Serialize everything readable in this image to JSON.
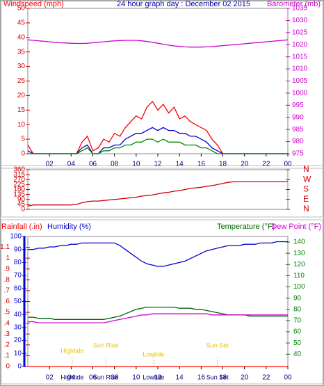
{
  "chart_data": [
    {
      "type": "line",
      "title": "24 hour graph day : December 02 2015",
      "xlim": [
        0,
        24
      ],
      "xticks": [
        {
          "value": 2,
          "label": "02"
        },
        {
          "value": 4,
          "label": "04"
        },
        {
          "value": 6,
          "label": "06"
        },
        {
          "value": 8,
          "label": "08"
        },
        10,
        12,
        14,
        16,
        18,
        20,
        22,
        {
          "value": 24,
          "label": "00"
        }
      ],
      "ylim": [
        0,
        50
      ],
      "yticks": [
        0,
        5,
        10,
        15,
        20,
        25,
        30,
        35,
        40,
        45,
        50
      ],
      "ycolor": "#cc0000",
      "y2lim": [
        975,
        1035
      ],
      "y2ticks": [
        975,
        980,
        985,
        990,
        995,
        1000,
        1005,
        1010,
        1015,
        1020,
        1025,
        1030,
        1035
      ],
      "y2color": "#cc00cc",
      "grid": false,
      "x": [
        0,
        0.5,
        1,
        1.5,
        2,
        2.5,
        3,
        3.5,
        4,
        4.5,
        5,
        5.5,
        6,
        6.5,
        7,
        7.5,
        8,
        8.5,
        9,
        9.5,
        10,
        10.5,
        11,
        11.5,
        12,
        12.5,
        13,
        13.5,
        14,
        14.5,
        15,
        15.5,
        16,
        16.5,
        17,
        17.5,
        18,
        18.5,
        19,
        19.5,
        20,
        20.5,
        21,
        21.5,
        22,
        22.5,
        23,
        23.5,
        24
      ],
      "series": [
        {
          "name": "Windspeed (mph)",
          "color": "#ff0000",
          "axis": "y",
          "values": [
            3,
            0,
            0,
            0,
            0,
            0,
            0,
            0,
            0,
            0,
            4,
            6,
            1,
            2,
            5,
            4,
            7,
            6,
            9,
            11,
            13,
            12,
            16,
            18,
            15,
            17,
            14,
            16,
            12,
            13,
            11,
            10,
            9,
            8,
            5,
            3,
            0,
            0,
            0,
            0,
            0,
            0,
            0,
            0,
            0,
            0,
            0,
            0,
            0
          ]
        },
        {
          "color": "#0000cc",
          "axis": "y",
          "values": [
            1,
            0,
            0,
            0,
            0,
            0,
            0,
            0,
            0,
            0,
            2,
            3,
            0,
            0,
            2,
            2,
            3,
            3,
            5,
            6,
            7,
            7,
            8,
            9,
            8,
            9,
            8,
            8,
            7,
            7,
            6,
            6,
            5,
            4,
            2,
            1,
            0,
            0,
            0,
            0,
            0,
            0,
            0,
            0,
            0,
            0,
            0,
            0,
            0
          ]
        },
        {
          "color": "#008000",
          "axis": "y",
          "values": [
            0,
            0,
            0,
            0,
            0,
            0,
            0,
            0,
            0,
            0,
            1,
            2,
            0,
            0,
            1,
            1,
            2,
            2,
            3,
            3,
            4,
            4,
            5,
            5,
            4,
            5,
            4,
            4,
            4,
            3,
            3,
            3,
            2,
            2,
            1,
            0,
            0,
            0,
            0,
            0,
            0,
            0,
            0,
            0,
            0,
            0,
            0,
            0,
            0
          ]
        },
        {
          "name": "Barometer (mb)",
          "color": "#cc00cc",
          "axis": "y2",
          "values": [
            1022,
            1021.8,
            1021.6,
            1021.4,
            1021.2,
            1021,
            1020.8,
            1020.7,
            1020.6,
            1020.5,
            1020.5,
            1020.6,
            1020.8,
            1021,
            1021.2,
            1021.4,
            1021.6,
            1021.7,
            1021.8,
            1021.8,
            1021.8,
            1021.6,
            1021.3,
            1021,
            1020.6,
            1020.2,
            1019.8,
            1019.5,
            1019.3,
            1019.1,
            1019,
            1019,
            1019,
            1019.1,
            1019.2,
            1019.4,
            1019.6,
            1019.8,
            1020,
            1020.2,
            1020.4,
            1020.6,
            1020.8,
            1021,
            1021.2,
            1021.4,
            1021.6,
            1021.8,
            1022
          ]
        }
      ]
    },
    {
      "type": "line",
      "xlim": [
        0,
        24
      ],
      "ylim": [
        0,
        360
      ],
      "yticks": [
        0,
        45,
        90,
        135,
        180,
        225,
        270,
        315,
        360
      ],
      "ycolor": "#cc0000",
      "y2lim": [
        0,
        360
      ],
      "y2ticks": [
        {
          "value": 0,
          "label": "N"
        },
        {
          "value": 90,
          "label": "E"
        },
        {
          "value": 180,
          "label": "S"
        },
        {
          "value": 270,
          "label": "W"
        },
        {
          "value": 360,
          "label": "N"
        }
      ],
      "y2color": "#cc0000",
      "x": [
        0,
        0.5,
        1,
        1.5,
        2,
        2.5,
        3,
        3.5,
        4,
        4.5,
        5,
        5.5,
        6,
        6.5,
        7,
        7.5,
        8,
        8.5,
        9,
        9.5,
        10,
        10.5,
        11,
        11.5,
        12,
        12.5,
        13,
        13.5,
        14,
        14.5,
        15,
        15.5,
        16,
        16.5,
        17,
        17.5,
        18,
        18.5,
        19,
        19.5,
        20,
        20.5,
        21,
        21.5,
        22,
        22.5,
        23,
        23.5,
        24
      ],
      "series": [
        {
          "color": "#cc0000",
          "axis": "y",
          "values": [
            30,
            40,
            40,
            40,
            40,
            40,
            40,
            40,
            40,
            45,
            60,
            70,
            75,
            75,
            80,
            85,
            90,
            95,
            100,
            105,
            110,
            120,
            125,
            130,
            140,
            150,
            155,
            165,
            170,
            180,
            190,
            195,
            200,
            210,
            215,
            225,
            235,
            245,
            250,
            250,
            250,
            250,
            250,
            250,
            250,
            250,
            250,
            250,
            250
          ]
        }
      ]
    },
    {
      "type": "line",
      "xlim": [
        0,
        24
      ],
      "xticks": [
        {
          "value": 2,
          "label": "02"
        },
        {
          "value": 4,
          "label": "04"
        },
        {
          "value": 6,
          "label": "06"
        },
        {
          "value": 8,
          "label": "08"
        },
        10,
        12,
        14,
        16,
        18,
        20,
        22,
        {
          "value": 24,
          "label": "00"
        }
      ],
      "ylim": [
        0,
        1.2
      ],
      "yticks": [
        0,
        {
          "value": 0.1,
          "label": ".1"
        },
        {
          "value": 0.2,
          "label": ".2"
        },
        {
          "value": 0.3,
          "label": ".3"
        },
        {
          "value": 0.4,
          "label": ".4"
        },
        {
          "value": 0.5,
          "label": ".5"
        },
        {
          "value": 0.6,
          "label": ".6"
        },
        {
          "value": 0.7,
          "label": ".7"
        },
        {
          "value": 0.8,
          "label": ".8"
        },
        {
          "value": 0.9,
          "label": ".9"
        },
        1,
        1.1
      ],
      "ycolor": "#cc0000",
      "y3lim": [
        0,
        100
      ],
      "y3ticks": [
        0,
        10,
        20,
        30,
        40,
        50,
        60,
        70,
        80,
        90,
        100
      ],
      "y3color": "#0000cc",
      "y2lim": [
        29,
        145
      ],
      "y2ticks": [
        40,
        50,
        60,
        70,
        80,
        90,
        100,
        110,
        120,
        130,
        140
      ],
      "y2color": "#008000",
      "x": [
        0,
        0.5,
        1,
        1.5,
        2,
        2.5,
        3,
        3.5,
        4,
        4.5,
        5,
        5.5,
        6,
        6.5,
        7,
        7.5,
        8,
        8.5,
        9,
        9.5,
        10,
        10.5,
        11,
        11.5,
        12,
        12.5,
        13,
        13.5,
        14,
        14.5,
        15,
        15.5,
        16,
        16.5,
        17,
        17.5,
        18,
        18.5,
        19,
        19.5,
        20,
        20.5,
        21,
        21.5,
        22,
        22.5,
        23,
        23.5,
        24
      ],
      "series": [
        {
          "name": "Rainfall (.in)",
          "color": "#ff0000",
          "axis": "y",
          "values": [
            0,
            0,
            0,
            0,
            0,
            0,
            0,
            0,
            0,
            0,
            0,
            0,
            0,
            0,
            0,
            0,
            0,
            0,
            0,
            0,
            0,
            0,
            0,
            0,
            0,
            0,
            0,
            0,
            0,
            0,
            0,
            0,
            0,
            0,
            0,
            0,
            0,
            0,
            0,
            0,
            0,
            0,
            0,
            0,
            0,
            0,
            0,
            0,
            0
          ]
        },
        {
          "name": "Humidity (%)",
          "color": "#0000cc",
          "axis": "y3",
          "values": [
            90,
            90,
            91,
            91,
            92,
            92,
            93,
            93,
            94,
            94,
            95,
            95,
            95,
            95,
            95,
            95,
            95,
            93,
            90,
            87,
            84,
            81,
            79,
            78,
            77,
            77,
            78,
            79,
            80,
            81,
            83,
            85,
            87,
            89,
            90,
            91,
            92,
            93,
            93,
            93,
            94,
            94,
            94,
            95,
            95,
            95,
            96,
            96,
            96
          ]
        },
        {
          "name": "Temperature (°F)",
          "color": "#006600",
          "axis": "y2",
          "values": [
            73,
            73,
            72,
            72,
            72,
            71,
            71,
            71,
            71,
            71,
            71,
            71,
            71,
            71,
            71,
            72,
            73,
            74,
            76,
            78,
            80,
            81,
            82,
            82,
            82,
            82,
            82,
            82,
            81,
            81,
            81,
            80,
            80,
            79,
            78,
            77,
            76,
            75,
            75,
            75,
            75,
            74,
            74,
            74,
            74,
            74,
            74,
            74,
            74
          ]
        },
        {
          "name": "Dew Point (°F)",
          "color": "#cc00cc",
          "axis": "y2",
          "values": [
            69,
            69,
            68,
            68,
            68,
            68,
            68,
            68,
            68,
            68,
            68,
            68,
            68,
            68,
            68,
            69,
            70,
            71,
            72,
            73,
            74,
            75,
            75,
            76,
            76,
            76,
            76,
            76,
            76,
            76,
            76,
            76,
            76,
            76,
            75,
            75,
            75,
            75,
            75,
            75,
            75,
            75,
            75,
            75,
            75,
            75,
            75,
            75,
            75
          ]
        }
      ],
      "events": [
        {
          "label": "Hightide",
          "x": 4.1
        },
        {
          "label": "Sun Rise",
          "x": 7.2
        },
        {
          "label": "Lowtide",
          "x": 11.6
        },
        {
          "label": "Sun Set",
          "x": 17.5
        }
      ]
    }
  ]
}
